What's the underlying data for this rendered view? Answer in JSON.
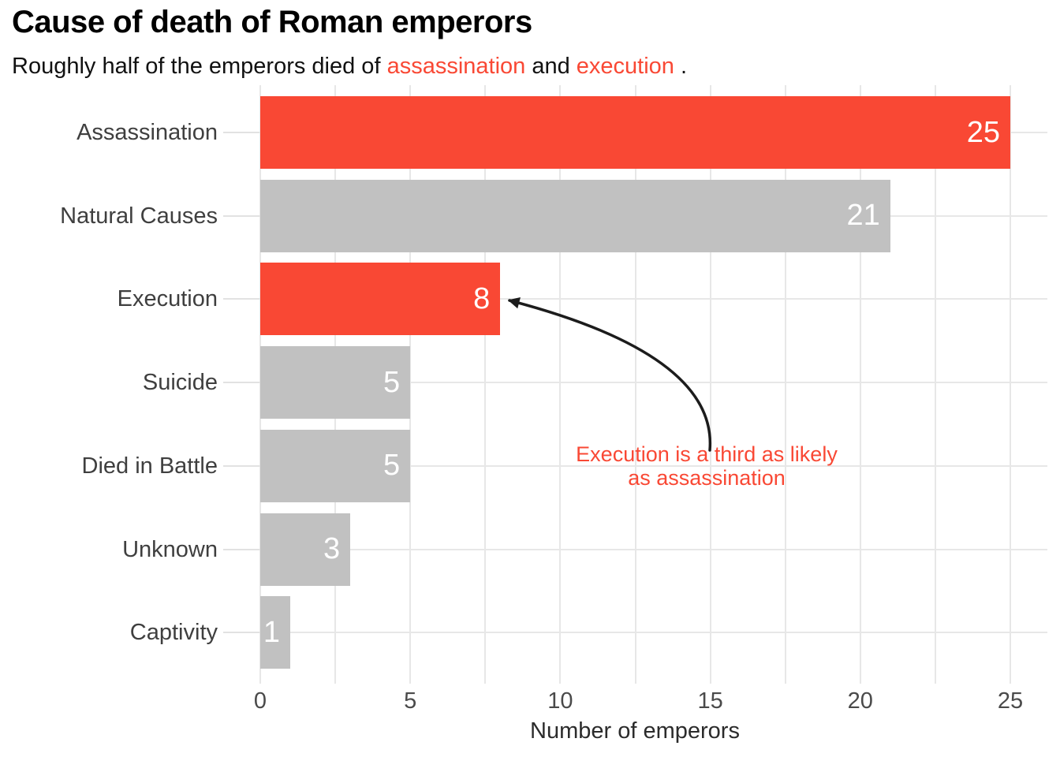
{
  "title": "Cause of death of Roman emperors",
  "subtitle": {
    "prefix": "Roughly half of the emperors died of ",
    "highlight_1": "assassination",
    "connector": " and ",
    "highlight_2": "execution",
    "suffix": " ."
  },
  "chart_data": {
    "type": "bar",
    "orientation": "horizontal",
    "title": "Cause of death of Roman emperors",
    "subtitle": "Roughly half of the emperors died of assassination and execution .",
    "categories": [
      "Assassination",
      "Natural Causes",
      "Execution",
      "Suicide",
      "Died in Battle",
      "Unknown",
      "Captivity"
    ],
    "values": [
      25,
      21,
      8,
      5,
      5,
      3,
      1
    ],
    "value_labels": [
      "25",
      "21",
      "8",
      "5",
      "5",
      "3",
      "1"
    ],
    "highlighted_categories": [
      "Assassination",
      "Execution"
    ],
    "xlabel": "Number of emperors",
    "ylabel": "",
    "xlim": [
      0,
      26.2
    ],
    "x_ticks": [
      0,
      5,
      10,
      15,
      20,
      25
    ],
    "x_minor_tick_step": 2.5,
    "grid": "on",
    "legend": "none",
    "annotation": {
      "line1": "Execution is a third as likely",
      "line2": "as assassination",
      "points_to": "Execution"
    }
  },
  "colors": {
    "highlight_red": "#f94834",
    "bar_gray": "#c1c1c1",
    "grid": "#e7e7e7",
    "tick": "#e2e2e2",
    "value_label_text": "#ffffff",
    "arrow": "#1c1c1c"
  }
}
